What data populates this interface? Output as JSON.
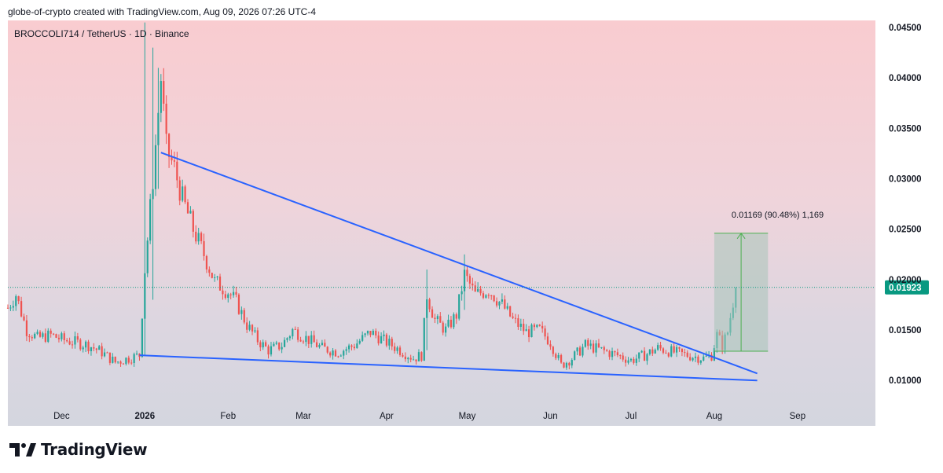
{
  "header": {
    "attribution": "globe-of-crypto created with TradingView.com, Aug 09, 2026 07:26 UTC-4"
  },
  "symbol": {
    "label": "BROCCOLI714 / TetherUS · 1D · Binance"
  },
  "branding": {
    "logo_text": "TradingView"
  },
  "colors": {
    "up": "#26a69a",
    "down": "#ef5350",
    "trendline": "#2962ff",
    "price_badge": "#089981",
    "measure_box": "#a7c4b8",
    "measure_line": "#4caf50"
  },
  "chart_data": {
    "type": "candlestick",
    "x_labels": [
      "Dec",
      "2026",
      "Feb",
      "Mar",
      "Apr",
      "May",
      "Jun",
      "Jul",
      "Aug",
      "Sep"
    ],
    "x_label_dates": [
      "2025-12-01",
      "2026-01-01",
      "2026-02-01",
      "2026-03-01",
      "2026-04-01",
      "2026-05-01",
      "2026-06-01",
      "2026-07-01",
      "2026-08-01",
      "2026-09-01"
    ],
    "y_ticks": [
      "0.04500",
      "0.04000",
      "0.03500",
      "0.03000",
      "0.02500",
      "0.02000",
      "0.01500",
      "0.01000"
    ],
    "y_tick_values": [
      0.045,
      0.04,
      0.035,
      0.03,
      0.025,
      0.02,
      0.015,
      0.01
    ],
    "ylim": [
      0.0055,
      0.0457
    ],
    "xlim": [
      "2025-11-11",
      "2026-09-30"
    ],
    "current_price": "0.01923",
    "current_price_value": 0.01923,
    "price_path": [
      [
        "2025-11-11",
        0.0172
      ],
      [
        "2025-11-14",
        0.0185
      ],
      [
        "2025-11-18",
        0.015
      ],
      [
        "2025-11-22",
        0.0142
      ],
      [
        "2025-11-27",
        0.0145
      ],
      [
        "2025-12-02",
        0.014
      ],
      [
        "2025-12-06",
        0.0138
      ],
      [
        "2025-12-11",
        0.0135
      ],
      [
        "2025-12-16",
        0.0128
      ],
      [
        "2025-12-21",
        0.0118
      ],
      [
        "2025-12-26",
        0.0122
      ],
      [
        "2025-12-30",
        0.0125
      ],
      [
        "2026-01-01",
        0.021
      ],
      [
        "2026-01-04",
        0.03
      ],
      [
        "2026-01-07",
        0.04
      ],
      [
        "2026-01-09",
        0.033
      ],
      [
        "2026-01-12",
        0.031
      ],
      [
        "2026-01-15",
        0.028
      ],
      [
        "2026-01-19",
        0.025
      ],
      [
        "2026-01-23",
        0.0225
      ],
      [
        "2026-01-27",
        0.0198
      ],
      [
        "2026-02-01",
        0.0188
      ],
      [
        "2026-02-04",
        0.0178
      ],
      [
        "2026-02-08",
        0.0155
      ],
      [
        "2026-02-12",
        0.014
      ],
      [
        "2026-02-16",
        0.013
      ],
      [
        "2026-02-21",
        0.0135
      ],
      [
        "2026-02-25",
        0.015
      ],
      [
        "2026-03-02",
        0.0142
      ],
      [
        "2026-03-08",
        0.0132
      ],
      [
        "2026-03-14",
        0.0128
      ],
      [
        "2026-03-20",
        0.0135
      ],
      [
        "2026-03-26",
        0.0148
      ],
      [
        "2026-04-01",
        0.0138
      ],
      [
        "2026-04-06",
        0.013
      ],
      [
        "2026-04-11",
        0.0122
      ],
      [
        "2026-04-14",
        0.0125
      ],
      [
        "2026-04-16",
        0.0185
      ],
      [
        "2026-04-19",
        0.016
      ],
      [
        "2026-04-23",
        0.015
      ],
      [
        "2026-04-27",
        0.0165
      ],
      [
        "2026-04-30",
        0.0205
      ],
      [
        "2026-05-04",
        0.0185
      ],
      [
        "2026-05-09",
        0.019
      ],
      [
        "2026-05-14",
        0.0175
      ],
      [
        "2026-05-18",
        0.016
      ],
      [
        "2026-05-23",
        0.0148
      ],
      [
        "2026-05-28",
        0.015
      ],
      [
        "2026-06-01",
        0.0138
      ],
      [
        "2026-06-05",
        0.0115
      ],
      [
        "2026-06-09",
        0.0122
      ],
      [
        "2026-06-14",
        0.0135
      ],
      [
        "2026-06-20",
        0.013
      ],
      [
        "2026-06-26",
        0.0125
      ],
      [
        "2026-07-01",
        0.012
      ],
      [
        "2026-07-06",
        0.0125
      ],
      [
        "2026-07-11",
        0.0132
      ],
      [
        "2026-07-17",
        0.0128
      ],
      [
        "2026-07-22",
        0.0125
      ],
      [
        "2026-07-28",
        0.0122
      ],
      [
        "2026-07-31",
        0.0125
      ],
      [
        "2026-08-02",
        0.0145
      ],
      [
        "2026-08-04",
        0.0135
      ],
      [
        "2026-08-06",
        0.0148
      ],
      [
        "2026-08-08",
        0.0178
      ],
      [
        "2026-08-09",
        0.01923
      ]
    ],
    "spikes": [
      {
        "date": "2026-01-01",
        "high": 0.0455,
        "low": 0.0125
      },
      {
        "date": "2026-01-04",
        "high": 0.043,
        "low": 0.018
      },
      {
        "date": "2026-01-06",
        "high": 0.041,
        "low": 0.029
      },
      {
        "date": "2026-04-16",
        "high": 0.021,
        "low": 0.013
      },
      {
        "date": "2026-04-30",
        "high": 0.0225,
        "low": 0.017
      }
    ],
    "trendlines": [
      {
        "from": [
          "2026-01-07",
          0.0326
        ],
        "to": [
          "2026-08-17",
          0.0107
        ]
      },
      {
        "from": [
          "2025-12-30",
          0.0125
        ],
        "to": [
          "2026-08-17",
          0.01
        ]
      }
    ],
    "measurement": {
      "label": "0.01169 (90.48%) 1,169",
      "from_date": "2026-08-01",
      "to_date": "2026-08-21",
      "low": 0.0129,
      "high": 0.0246
    }
  }
}
